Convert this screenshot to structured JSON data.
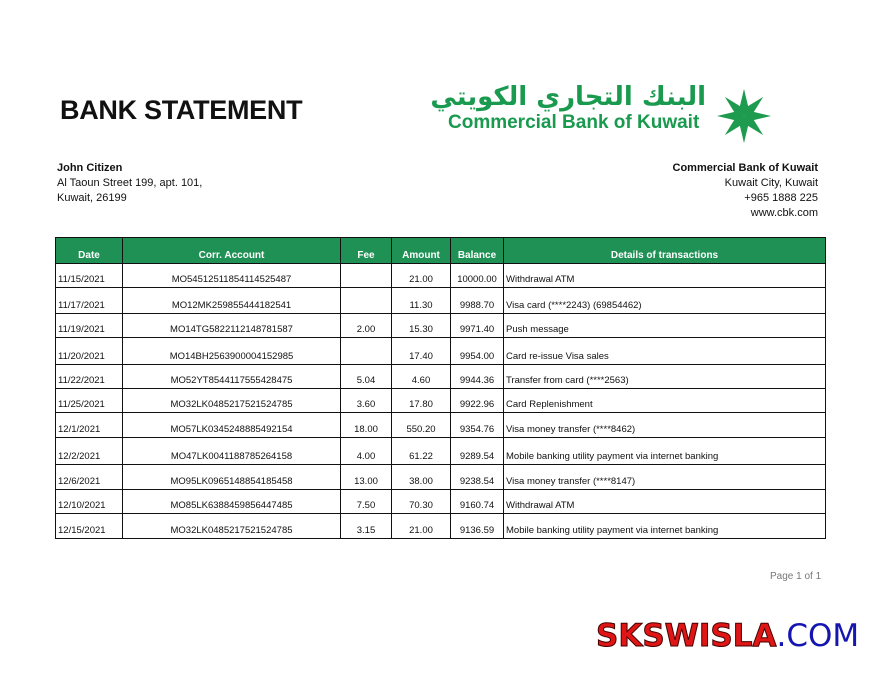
{
  "document": {
    "title": "BANK STATEMENT",
    "page_label": "Page 1 of 1"
  },
  "customer": {
    "name": "John Citizen",
    "address_line1": "Al Taoun Street 199, apt. 101,",
    "address_line2": "Kuwait, 26199"
  },
  "bank": {
    "logo_arabic": "البنك التجاري الكويتي",
    "logo_english": "Commercial Bank of Kuwait",
    "name": "Commercial Bank of Kuwait",
    "city": "Kuwait City, Kuwait",
    "phone": "+965 1888 225",
    "website": "www.cbk.com",
    "brand_color": "#1f9155"
  },
  "table": {
    "headers": [
      "Date",
      "Corr. Account",
      "Fee",
      "Amount",
      "Balance",
      "Details of transactions"
    ],
    "rows": [
      [
        "11/15/2021",
        "MO54512511854114525487",
        "",
        "21.00",
        "10000.00",
        "Withdrawal ATM"
      ],
      [
        "11/17/2021",
        "MO12MK259855444182541",
        "",
        "11.30",
        "9988.70",
        "Visa  card (****2243) (69854462)"
      ],
      [
        "11/19/2021",
        "MO14TG5822112148781587",
        "2.00",
        "15.30",
        "9971.40",
        "Push message"
      ],
      [
        "11/20/2021",
        "MO14BH2563900004152985",
        "",
        "17.40",
        "9954.00",
        "Card re-issue Visa sales"
      ],
      [
        "11/22/2021",
        "MO52YT8544117555428475",
        "5.04",
        "4.60",
        "9944.36",
        "Transfer from card (****2563)"
      ],
      [
        "11/25/2021",
        "MO32LK0485217521524785",
        "3.60",
        "17.80",
        "9922.96",
        "Card Replenishment"
      ],
      [
        "12/1/2021",
        "MO57LK0345248885492154",
        "18.00",
        "550.20",
        "9354.76",
        "Visa  money transfer (****8462)"
      ],
      [
        "12/2/2021",
        "MO47LK0041188785264158",
        "4.00",
        "61.22",
        "9289.54",
        "Mobile banking utility payment via internet banking"
      ],
      [
        "12/6/2021",
        "MO95LK0965148854185458",
        "13.00",
        "38.00",
        "9238.54",
        "Visa money transfer (****8147)"
      ],
      [
        "12/10/2021",
        "MO85LK6388459856447485",
        "7.50",
        "70.30",
        "9160.74",
        "Withdrawal ATM"
      ],
      [
        "12/15/2021",
        "MO32LK0485217521524785",
        "3.15",
        "21.00",
        "9136.59",
        "Mobile banking utility payment via internet banking"
      ]
    ]
  },
  "watermark": {
    "part1": "SKSWISLA",
    "part2": ".COM"
  }
}
